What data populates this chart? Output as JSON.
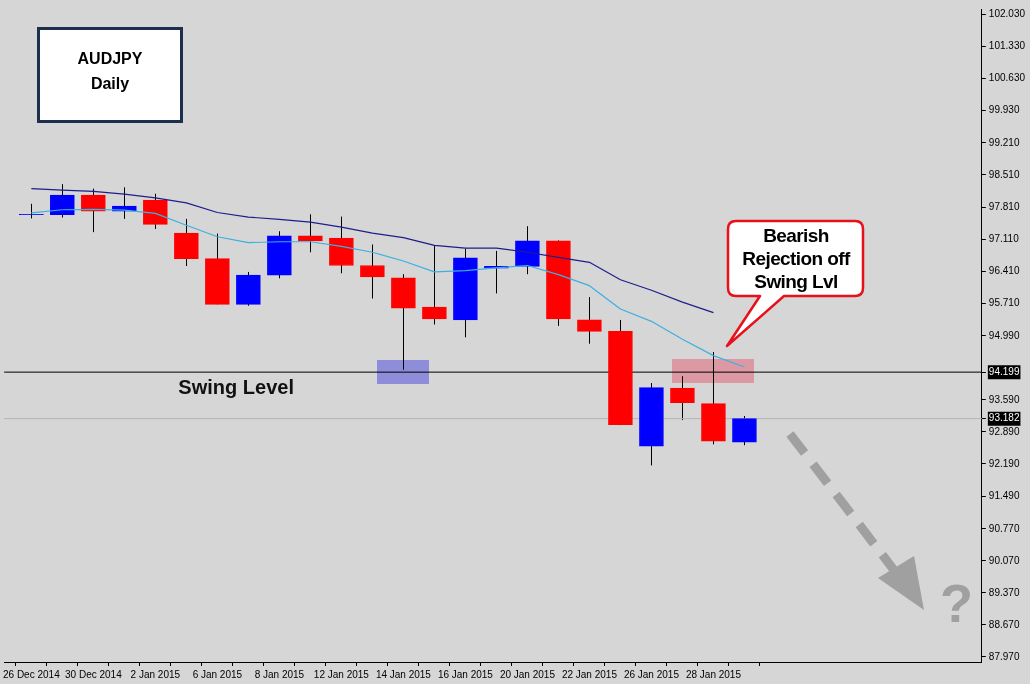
{
  "chart_data": {
    "type": "candlestick",
    "title": "AUDJPY",
    "subtitle": "Daily",
    "categories": [
      "26 Dec 2014",
      null,
      "30 Dec 2014",
      null,
      "2 Jan 2015",
      null,
      "6 Jan 2015",
      null,
      "8 Jan 2015",
      null,
      "12 Jan 2015",
      null,
      "14 Jan 2015",
      null,
      "16 Jan 2015",
      null,
      "20 Jan 2015",
      null,
      "22 Jan 2015",
      null,
      "26 Jan 2015",
      null,
      "28 Jan 2015",
      null
    ],
    "ohlc": [
      [
        97.64,
        97.88,
        97.56,
        97.65
      ],
      [
        97.64,
        98.31,
        97.58,
        98.07
      ],
      [
        98.07,
        98.21,
        97.26,
        97.72
      ],
      [
        97.72,
        98.24,
        97.55,
        97.83
      ],
      [
        97.96,
        98.1,
        97.33,
        97.43
      ],
      [
        97.24,
        97.55,
        96.52,
        96.68
      ],
      [
        96.68,
        97.23,
        95.68,
        95.68
      ],
      [
        95.68,
        96.39,
        95.65,
        96.32
      ],
      [
        96.32,
        97.28,
        96.25,
        97.18
      ],
      [
        97.18,
        97.65,
        96.82,
        97.07
      ],
      [
        97.13,
        97.6,
        96.36,
        96.53
      ],
      [
        96.53,
        96.99,
        95.81,
        96.28
      ],
      [
        96.26,
        96.34,
        94.25,
        95.6
      ],
      [
        95.62,
        96.96,
        95.24,
        95.36
      ],
      [
        95.34,
        96.9,
        94.96,
        96.7
      ],
      [
        96.47,
        96.85,
        95.92,
        96.51
      ],
      [
        96.51,
        97.39,
        96.34,
        97.07
      ],
      [
        97.07,
        97.08,
        95.21,
        95.36
      ],
      [
        95.34,
        95.84,
        94.82,
        95.09
      ],
      [
        95.09,
        95.34,
        93.04,
        93.05
      ],
      [
        92.58,
        93.96,
        92.16,
        93.86
      ],
      [
        93.85,
        94.11,
        93.15,
        93.53
      ],
      [
        93.51,
        94.64,
        92.62,
        92.69
      ],
      [
        92.67,
        93.24,
        92.6,
        93.182
      ]
    ],
    "colors": [
      "#0000ff",
      "#0000ff",
      "#ff0000",
      "#0000ff",
      "#ff0000",
      "#ff0000",
      "#ff0000",
      "#0000ff",
      "#0000ff",
      "#ff0000",
      "#ff0000",
      "#ff0000",
      "#ff0000",
      "#ff0000",
      "#0000ff",
      "#0000ff",
      "#0000ff",
      "#ff0000",
      "#ff0000",
      "#ff0000",
      "#0000ff",
      "#ff0000",
      "#ff0000",
      "#0000ff"
    ],
    "series": [
      {
        "type": "line",
        "color": "#1e1e8c",
        "values": [
          98.21,
          98.18,
          98.15,
          98.09,
          98.01,
          97.9,
          97.69,
          97.59,
          97.54,
          97.48,
          97.37,
          97.24,
          97.14,
          96.97,
          96.91,
          96.91,
          96.82,
          96.71,
          96.6,
          96.22,
          95.99,
          95.73,
          95.5,
          null
        ]
      },
      {
        "type": "line",
        "color": "#3cb0e0",
        "values": [
          97.68,
          97.75,
          97.76,
          97.74,
          97.67,
          97.41,
          97.16,
          97.03,
          97.05,
          97.05,
          96.95,
          96.82,
          96.63,
          96.39,
          96.42,
          96.48,
          96.53,
          96.33,
          96.09,
          95.58,
          95.31,
          94.92,
          94.56,
          94.31
        ]
      }
    ],
    "ylim": [
      87.86,
      102.14
    ],
    "yticks": [
      {
        "value": 87.97,
        "label": "87.970"
      },
      {
        "value": 88.67,
        "label": "88.670"
      },
      {
        "value": 89.37,
        "label": "89.370"
      },
      {
        "value": 90.07,
        "label": "90.070"
      },
      {
        "value": 90.77,
        "label": "90.770"
      },
      {
        "value": 91.49,
        "label": "91.490"
      },
      {
        "value": 92.19,
        "label": "92.190"
      },
      {
        "value": 92.89,
        "label": "92.890"
      },
      {
        "value": 93.182,
        "label": "93.182"
      },
      {
        "value": 93.59,
        "label": "93.590"
      },
      {
        "value": 94.199,
        "label": "94.199"
      },
      {
        "value": 94.99,
        "label": "94.990"
      },
      {
        "value": 95.71,
        "label": "95.710"
      },
      {
        "value": 96.41,
        "label": "96.410"
      },
      {
        "value": 97.11,
        "label": "97.110"
      },
      {
        "value": 97.81,
        "label": "97.810"
      },
      {
        "value": 98.51,
        "label": "98.510"
      },
      {
        "value": 99.21,
        "label": "99.210"
      },
      {
        "value": 99.93,
        "label": "99.930"
      },
      {
        "value": 100.63,
        "label": "100.630"
      },
      {
        "value": 101.33,
        "label": "101.330"
      },
      {
        "value": 102.03,
        "label": "102.030"
      }
    ],
    "ref_lines": [
      {
        "axis": "y",
        "value": 94.199,
        "label": "Swing Level",
        "color": "#000000"
      },
      {
        "axis": "y",
        "value": 93.182,
        "color": "#b4b4b4"
      }
    ],
    "annotations": [
      "Bearish Rejection off Swing Lvl",
      "?"
    ]
  }
}
